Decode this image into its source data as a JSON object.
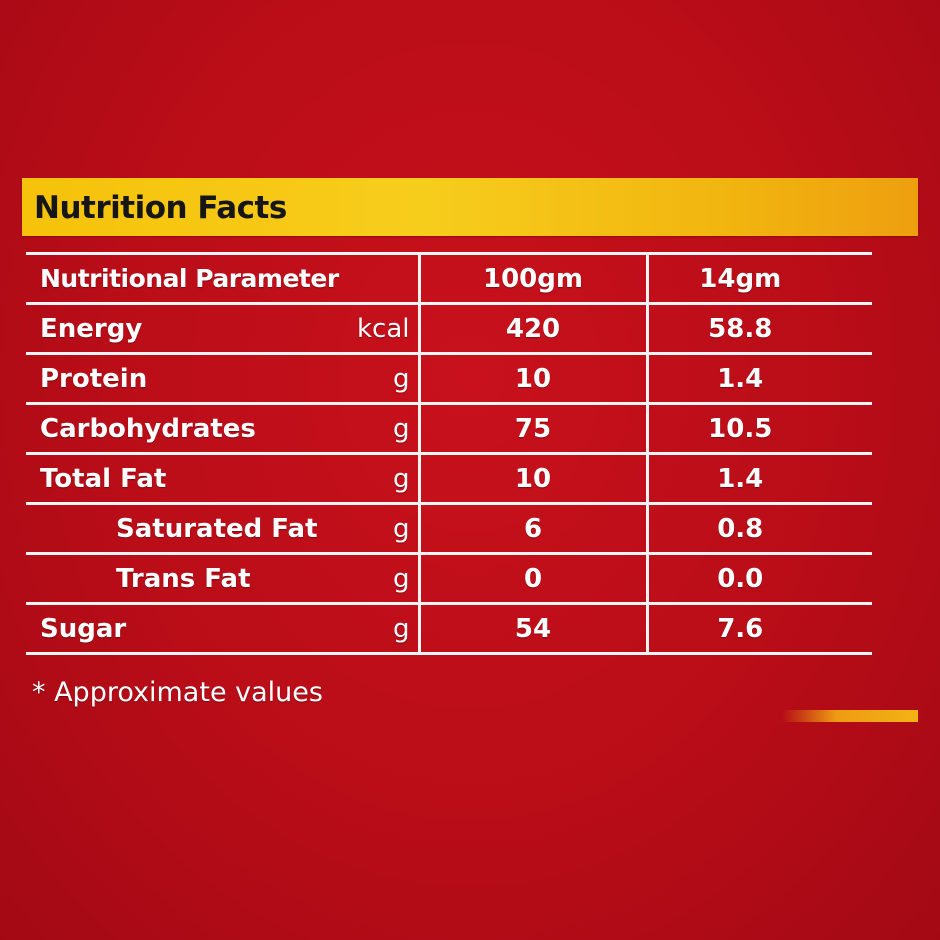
{
  "label": {
    "title": "Nutrition Facts",
    "columns": {
      "parameter": "Nutritional Parameter",
      "per_100": "100gm",
      "per_serving": "14gm"
    },
    "rows": [
      {
        "name": "Energy",
        "unit": "kcal",
        "per_100": "420",
        "per_serving": "58.8"
      },
      {
        "name": "Protein",
        "unit": "g",
        "per_100": "10",
        "per_serving": "1.4"
      },
      {
        "name": "Carbohydrates",
        "unit": "g",
        "per_100": "75",
        "per_serving": "10.5"
      },
      {
        "name": "Total Fat",
        "unit": "g",
        "per_100": "10",
        "per_serving": "1.4"
      },
      {
        "name": "Saturated Fat",
        "unit": "g",
        "per_100": "6",
        "per_serving": "0.8"
      },
      {
        "name": "Trans Fat",
        "unit": "g",
        "per_100": "0",
        "per_serving": "0.0"
      },
      {
        "name": "Sugar",
        "unit": "g",
        "per_100": "54",
        "per_serving": "7.6"
      }
    ],
    "footnote": "* Approximate values"
  },
  "colors": {
    "background": "#b90d18",
    "header_band": "#f6c20a",
    "text": "#ffffff",
    "title_text": "#161616"
  }
}
